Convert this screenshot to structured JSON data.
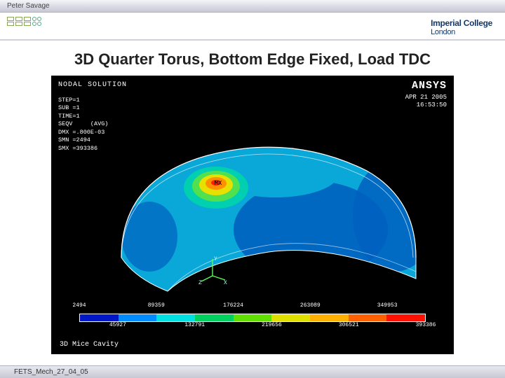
{
  "header": {
    "author": "Peter Savage"
  },
  "college": {
    "line1": "Imperial College",
    "line2": "London"
  },
  "title": "3D Quarter Torus, Bottom Edge Fixed, Load TDC",
  "ansys": {
    "brand": "ANSYS",
    "nodal": "NODAL SOLUTION",
    "date": "APR 21 2005",
    "time": "16:53:50",
    "legend_lines": [
      "STEP=1",
      "SUB =1",
      "TIME=1",
      "SEQV     (AVG)",
      "DMX =.800E-03",
      "SMN =2494",
      "SMX =393386"
    ],
    "cavity": "3D Mice Cavity"
  },
  "colorbar": {
    "colors": [
      "#0018c8",
      "#008cff",
      "#00e0e0",
      "#00d060",
      "#60e000",
      "#e0e000",
      "#ffb000",
      "#ff6000",
      "#ff1000"
    ],
    "ticks_top": [
      "2494",
      "89359",
      "176224",
      "263089",
      "349953"
    ],
    "ticks_bottom": [
      "45927",
      "132791",
      "219656",
      "306521",
      "393386"
    ]
  },
  "torus": {
    "base_fill": "#0aa8d8",
    "dark_patches": "#0060c0",
    "mid_patch": "#00d0b0",
    "hot_ring1": "#50e050",
    "hot_ring2": "#e8e000",
    "hot_ring3": "#ff9000",
    "hot_center": "#ff2000",
    "outline": "#ffffff",
    "mx_label": "MX"
  },
  "footer": {
    "text": "FETS_Mech_27_04_05"
  }
}
